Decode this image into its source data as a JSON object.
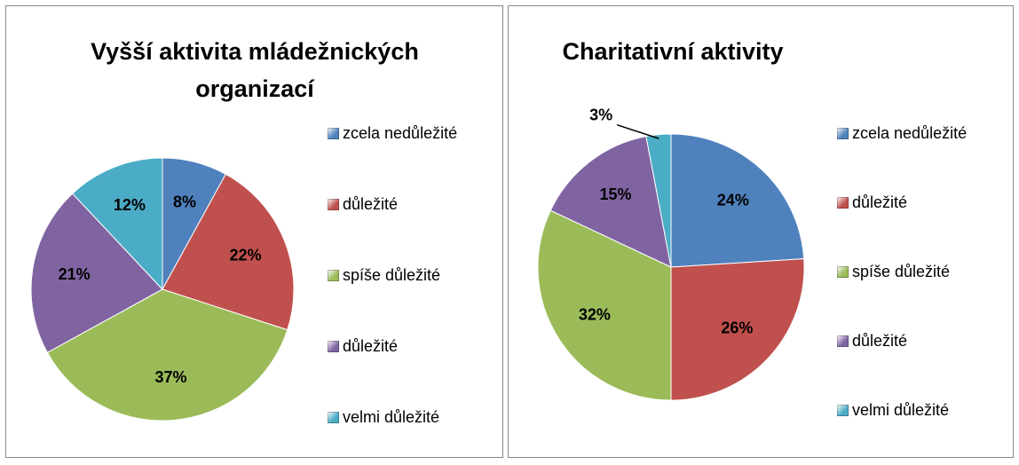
{
  "chart_data": [
    {
      "type": "pie",
      "title": "Vyšší aktivita mládežnických organizací",
      "categories": [
        "zcela nedůležité",
        "důležité",
        "spíše důležité",
        "důležité",
        "velmi důležité"
      ],
      "values": [
        8,
        22,
        37,
        21,
        12
      ],
      "value_labels": [
        "8%",
        "22%",
        "37%",
        "21%",
        "12%"
      ],
      "colors": [
        "#4f81bd",
        "#c0504d",
        "#9bbb59",
        "#8064a2",
        "#4bacc6"
      ],
      "legend": "right"
    },
    {
      "type": "pie",
      "title": "Charitativní aktivity",
      "categories": [
        "zcela nedůležité",
        "důležité",
        "spíše důležité",
        "důležité",
        "velmi důležité"
      ],
      "values": [
        24,
        26,
        32,
        15,
        3
      ],
      "value_labels": [
        "24%",
        "26%",
        "32%",
        "15%",
        "3%"
      ],
      "colors": [
        "#4f81bd",
        "#c0504d",
        "#9bbb59",
        "#8064a2",
        "#4bacc6"
      ],
      "legend": "right"
    }
  ]
}
